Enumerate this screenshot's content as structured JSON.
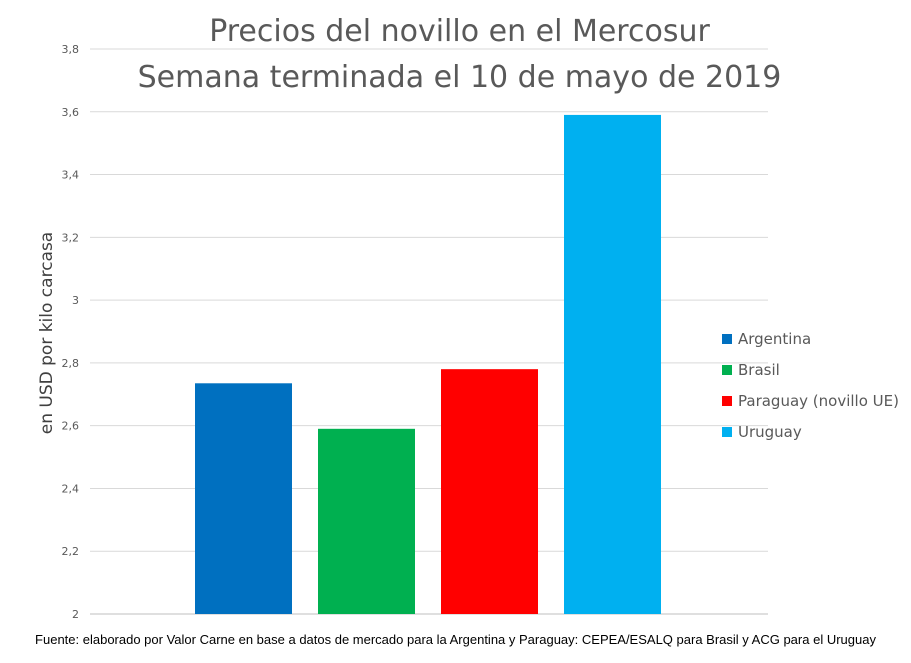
{
  "chart_data": {
    "type": "bar",
    "title_lines": [
      "Precios del novillo en el Mercosur",
      "Semana terminada el 10 de mayo de 2019"
    ],
    "xlabel": "",
    "ylabel": "en USD por kilo carcasa",
    "ylim": [
      2,
      3.8
    ],
    "yticks": [
      "2",
      "2,2",
      "2,4",
      "2,6",
      "2,8",
      "3",
      "3,2",
      "3,4",
      "3,6",
      "3,8"
    ],
    "grid": true,
    "legend_position": "right",
    "series": [
      {
        "name": "Argentina",
        "values": [
          2.735
        ],
        "color": "#0070C0"
      },
      {
        "name": "Brasil",
        "values": [
          2.59
        ],
        "color": "#00B050"
      },
      {
        "name": "Paraguay (novillo UE)",
        "values": [
          2.78
        ],
        "color": "#FF0000"
      },
      {
        "name": "Uruguay",
        "values": [
          3.59
        ],
        "color": "#00B0F0"
      }
    ]
  },
  "footer": "Fuente: elaborado por Valor Carne en base a datos de mercado para la Argentina y Paraguay: CEPEA/ESALQ para Brasil y ACG para el Uruguay"
}
